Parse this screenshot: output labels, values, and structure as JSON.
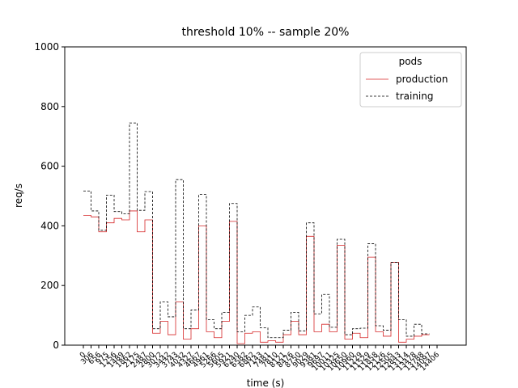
{
  "chart_data": {
    "type": "step",
    "title": "threshold 10% -- sample 20%",
    "x_label": "time (s)",
    "y_label": "req/s",
    "categories": [
      "0",
      "306",
      "656",
      "975",
      "1256",
      "1489",
      "1862",
      "2175",
      "2487",
      "2800",
      "3072",
      "3442",
      "3743",
      "4032",
      "4327",
      "4667",
      "4961",
      "5266",
      "5605",
      "5921",
      "6240",
      "6582",
      "6862",
      "7143",
      "7481",
      "7810",
      "8121",
      "8476",
      "8750",
      "9029",
      "9381",
      "9697",
      "10011",
      "10325",
      "10650",
      "10960",
      "11229",
      "11529",
      "11858",
      "12126",
      "12505",
      "12843",
      "13114",
      "13478",
      "13788",
      "14097",
      "14406"
    ],
    "series": [
      {
        "name": "production",
        "color": "#d62728",
        "dash": false,
        "values": [
          435,
          430,
          380,
          410,
          425,
          420,
          450,
          380,
          420,
          40,
          80,
          35,
          145,
          20,
          55,
          400,
          45,
          25,
          80,
          415,
          5,
          40,
          45,
          10,
          15,
          10,
          35,
          80,
          35,
          365,
          45,
          70,
          45,
          335,
          20,
          40,
          25,
          295,
          45,
          30,
          278,
          10,
          20,
          30,
          35,
          null,
          null
        ]
      },
      {
        "name": "training",
        "color": "#000000",
        "dash": true,
        "values": [
          517,
          450,
          385,
          503,
          448,
          440,
          745,
          452,
          515,
          55,
          145,
          95,
          555,
          55,
          118,
          505,
          85,
          55,
          110,
          475,
          45,
          100,
          128,
          58,
          25,
          25,
          50,
          110,
          48,
          410,
          105,
          170,
          60,
          355,
          35,
          55,
          57,
          340,
          65,
          50,
          278,
          85,
          30,
          70,
          38,
          null,
          null
        ]
      }
    ],
    "legend_title": "pods",
    "legend": "upper right",
    "ylim": [
      0,
      1000
    ],
    "yticks": [
      0,
      200,
      400,
      600,
      800,
      1000
    ]
  }
}
